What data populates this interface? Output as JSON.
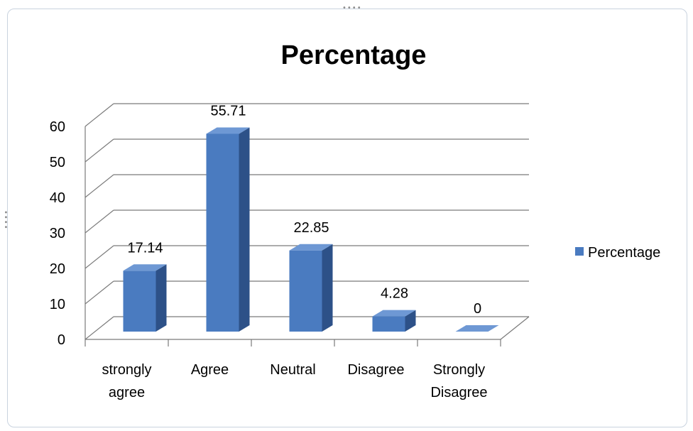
{
  "chart_data": {
    "type": "bar",
    "title": "Percentage",
    "categories": [
      [
        "strongly",
        "agree"
      ],
      [
        "Agree"
      ],
      [
        "Neutral"
      ],
      [
        "Disagree"
      ],
      [
        "Strongly",
        "Disagree"
      ]
    ],
    "series": [
      {
        "name": "Percentage",
        "values": [
          17.14,
          55.71,
          22.85,
          4.28,
          0
        ]
      }
    ],
    "data_labels": [
      "17.14",
      "55.71",
      "22.85",
      "4.28",
      "0"
    ],
    "ylim": [
      0,
      60
    ],
    "yticks": [
      0,
      10,
      20,
      30,
      40,
      50,
      60
    ],
    "grid": true,
    "style": "3d-column",
    "legend": "right",
    "colors": {
      "bar_front": "#4a7bc0",
      "bar_side": "#2d5188",
      "bar_top": "#6e98d4",
      "grid": "#7a7a7a"
    }
  }
}
